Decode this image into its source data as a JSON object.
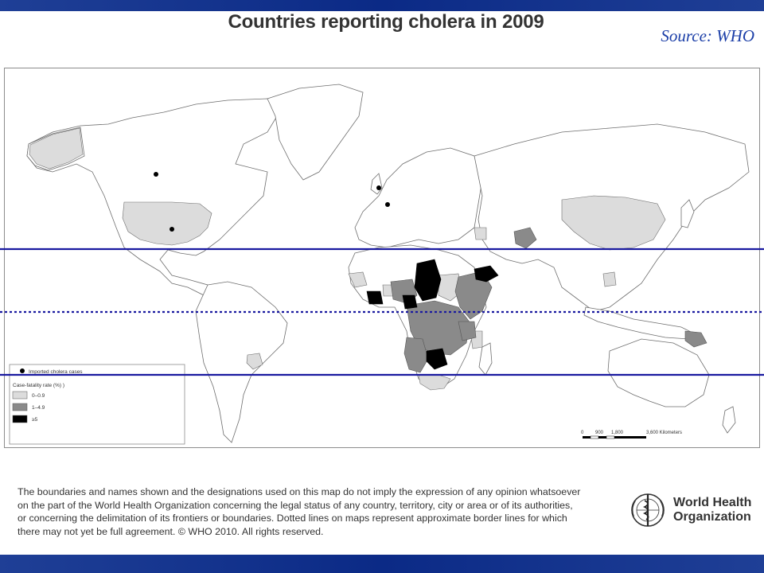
{
  "title": "Countries reporting cholera in 2009",
  "source": "Source: WHO",
  "map": {
    "legend": {
      "imported_label": "Imported cholera cases",
      "cfr_title": "Case-fatality rate (%) )",
      "classes": [
        {
          "label": "0–0.9",
          "color": "#dcdcdc"
        },
        {
          "label": "1–4.9",
          "color": "#8a8a8a"
        },
        {
          "label": "≥5",
          "color": "#000000"
        }
      ]
    },
    "scale_bar": {
      "ticks": [
        "0",
        "900",
        "1,800",
        "3,600 Kilometers"
      ]
    },
    "reference_line_color": "#1a1aa0"
  },
  "disclaimer_lines": [
    "The boundaries and names shown and the designations used on this map do not imply the expression of any opinion whatsoever",
    "on the part of the World Health Organization concerning the legal status of any country, territory, city or area or of its authorities,",
    "or concerning the delimitation of its frontiers or boundaries.  Dotted lines on maps represent approximate border lines for which",
    "there may not yet be full agreement. © WHO 2010. All rights reserved."
  ],
  "who_logo": {
    "line1": "World Health",
    "line2": "Organization"
  }
}
